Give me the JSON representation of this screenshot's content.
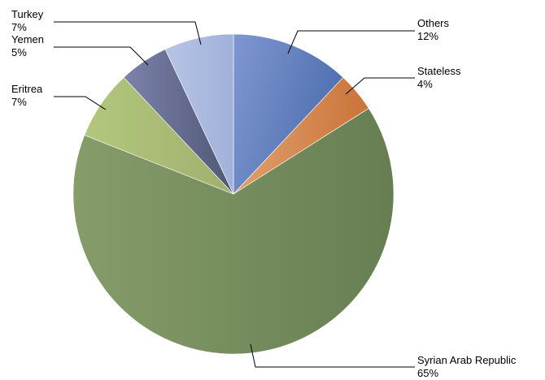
{
  "chart_data": {
    "type": "pie",
    "title": "",
    "slices": [
      {
        "label": "Others",
        "value": 12,
        "pct_label": "12%",
        "color": "#6a87c8"
      },
      {
        "label": "Stateless",
        "value": 4,
        "pct_label": "4%",
        "color": "#d98a4f"
      },
      {
        "label": "Syrian Arab Republic",
        "value": 65,
        "pct_label": "65%",
        "color": "#7a9160"
      },
      {
        "label": "Eritrea",
        "value": 7,
        "pct_label": "7%",
        "color": "#a8bd72"
      },
      {
        "label": "Yemen",
        "value": 5,
        "pct_label": "5%",
        "color": "#6c7198"
      },
      {
        "label": "Turkey",
        "value": 7,
        "pct_label": "7%",
        "color": "#a9b8dd"
      }
    ],
    "legend": "none"
  }
}
